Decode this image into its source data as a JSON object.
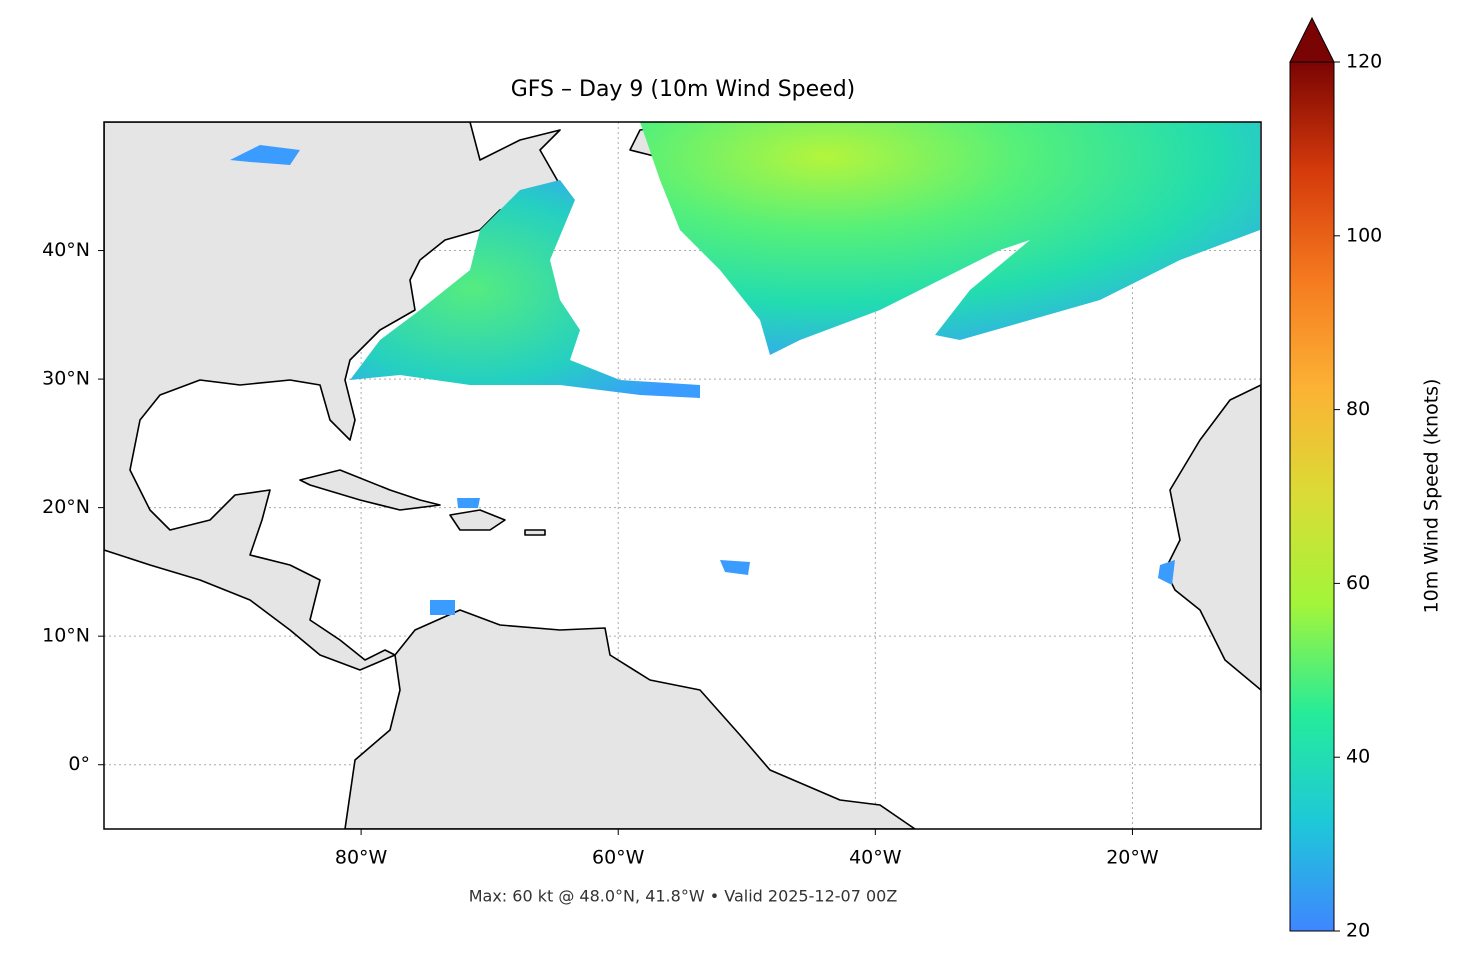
{
  "chart_data": {
    "type": "map",
    "title": "GFS – Day 9 (10m Wind Speed)",
    "note": "Max: 60 kt @ 48.0°N, 41.8°W • Valid 2025-12-07 00Z",
    "xlim": [
      -100,
      -10
    ],
    "ylim": [
      -5,
      50
    ],
    "xticks": [
      {
        "value": -80,
        "label": "80°W"
      },
      {
        "value": -60,
        "label": "60°W"
      },
      {
        "value": -40,
        "label": "40°W"
      },
      {
        "value": -20,
        "label": "20°W"
      }
    ],
    "yticks": [
      {
        "value": 0,
        "label": "0°"
      },
      {
        "value": 10,
        "label": "10°N"
      },
      {
        "value": 20,
        "label": "20°N"
      },
      {
        "value": 30,
        "label": "30°N"
      },
      {
        "value": 40,
        "label": "40°N"
      }
    ],
    "grid": true,
    "colorbar": {
      "label": "10m Wind Speed (knots)",
      "lim": [
        20,
        120
      ],
      "ticks": [
        20,
        40,
        60,
        80,
        100,
        120
      ],
      "colors": [
        "#3f86ff",
        "#1ec8d8",
        "#25ec9a",
        "#a2f53a",
        "#dadc35",
        "#fcb235",
        "#f57a1f",
        "#d53a0b",
        "#7a0403"
      ],
      "extend": "max"
    }
  }
}
